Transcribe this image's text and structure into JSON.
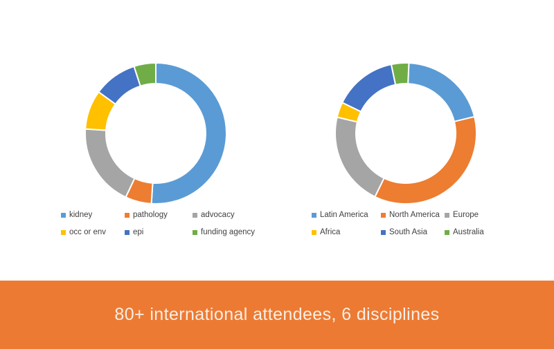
{
  "banner": {
    "text": "80+ international attendees, 6 disciplines",
    "background_color": "#ED7A33",
    "text_color": "#F8EFE5"
  },
  "chart_data": [
    {
      "type": "pie",
      "subtype": "donut",
      "title": "",
      "legend_position": "bottom",
      "start_angle_deg": 0,
      "categories": [
        "kidney",
        "pathology",
        "advocacy",
        "occ or env",
        "epi",
        "funding agency"
      ],
      "values": [
        51,
        6,
        19,
        9,
        10,
        5
      ],
      "values_are": "estimated percent share of ring",
      "colors": [
        "#5B9BD5",
        "#ED7D31",
        "#A5A5A5",
        "#FFC000",
        "#4472C4",
        "#70AD47"
      ]
    },
    {
      "type": "pie",
      "subtype": "donut",
      "title": "",
      "legend_position": "bottom",
      "start_angle_deg": 2.5,
      "categories": [
        "Latin America",
        "North America",
        "Europe",
        "Africa",
        "South Asia",
        "Australia"
      ],
      "values": [
        20.5,
        36,
        21.5,
        3.5,
        14.5,
        4
      ],
      "values_are": "estimated percent share of ring",
      "colors": [
        "#5B9BD5",
        "#ED7D31",
        "#A5A5A5",
        "#FFC000",
        "#4472C4",
        "#70AD47"
      ]
    }
  ]
}
